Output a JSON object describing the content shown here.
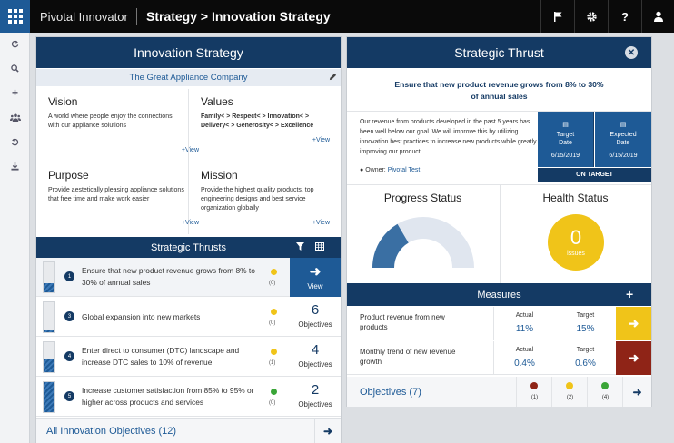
{
  "app": {
    "brand": "Pivotal Innovator",
    "breadcrumb": "Strategy > Innovation Strategy"
  },
  "left_panel": {
    "title": "Innovation Strategy",
    "company": "The Great Appliance Company",
    "vision": {
      "title": "Vision",
      "text": "A world where people enjoy the connections with our appliance solutions",
      "link": "+View"
    },
    "values": {
      "title": "Values",
      "text": "Family< > Respect< > Innovation< > Delivery< > Generosity< > Excellence",
      "link": "+View"
    },
    "purpose": {
      "title": "Purpose",
      "text": "Provide aestetically pleasing appliance solutions that free time and make work easier",
      "link": "+View"
    },
    "mission": {
      "title": "Mission",
      "text": "Provide the highest quality products, top engineering designs and best service organization globally",
      "link": "+View"
    },
    "thrusts_title": "Strategic Thrusts",
    "thrusts": [
      {
        "num": "1",
        "text": "Ensure that new product revenue grows from 8% to 30% of annual sales",
        "status_color": "#f0c419",
        "count": "(0)",
        "action": "View",
        "progress": 0.3
      },
      {
        "num": "3",
        "text": "Global expansion into new markets",
        "status_color": "#f0c419",
        "count": "(0)",
        "objectives": "6",
        "obj_label": "Objectives",
        "progress": 0.1
      },
      {
        "num": "4",
        "text": "Enter direct to consumer (DTC) landscape and increase DTC sales to 10% of revenue",
        "status_color": "#f0c419",
        "count": "(1)",
        "objectives": "4",
        "obj_label": "Objectives",
        "progress": 0.45
      },
      {
        "num": "5",
        "text": "Increase customer satisfaction from 85% to 95% or higher across products and services",
        "status_color": "#3aa537",
        "count": "(0)",
        "objectives": "2",
        "obj_label": "Objectives",
        "progress": 1.0
      }
    ],
    "all_objectives": "All Innovation Objectives (12)"
  },
  "right_panel": {
    "title": "Strategic Thrust",
    "thrust_title": "Ensure that new product revenue grows from 8% to 30% of annual sales",
    "description": "Our revenue from products developed in the past 5 years has been well below our goal. We will improve this by utilizing innovation best practices to increase new products while greatly improving our product",
    "owner_label": "Owner:",
    "owner_name": "Pivotal Test",
    "target_date_label": "Target Date",
    "target_date": "6/15/2019",
    "expected_date_label": "Expected Date",
    "expected_date": "6/15/2019",
    "on_target": "ON TARGET",
    "progress_title": "Progress Status",
    "progress_value": 0.33,
    "health_title": "Health Status",
    "health_count": "0",
    "health_label": "issues",
    "measures_title": "Measures",
    "measures": [
      {
        "name": "Product revenue from new products",
        "actual_label": "Actual",
        "actual": "11%",
        "target_label": "Target",
        "target": "15%",
        "trend_color": "#f0c419"
      },
      {
        "name": "Monthly trend of new revenue growth",
        "actual_label": "Actual",
        "actual": "0.4%",
        "target_label": "Target",
        "target": "0.6%",
        "trend_color": "#8f2417"
      }
    ],
    "objectives_label": "Objectives (7)",
    "objective_counts": [
      {
        "color": "#8f2417",
        "count": "(1)"
      },
      {
        "color": "#f0c419",
        "count": "(2)"
      },
      {
        "color": "#3aa537",
        "count": "(4)"
      }
    ]
  },
  "colors": {
    "navy": "#143a64",
    "blue": "#1e5a96",
    "yellow": "#f0c419",
    "red": "#8f2417",
    "green": "#3aa537"
  }
}
